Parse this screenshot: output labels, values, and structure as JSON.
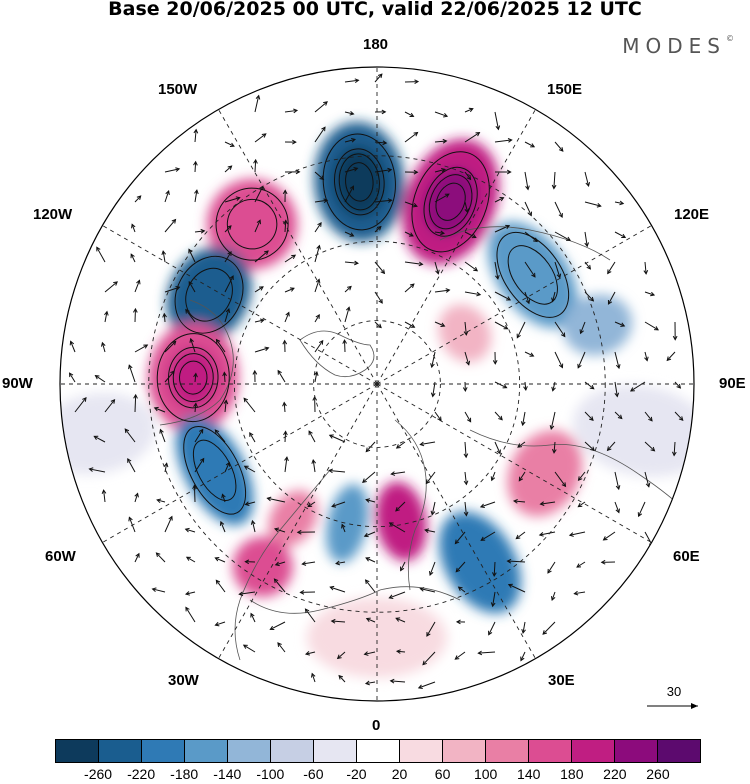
{
  "title": "Base 20/06/2025 00 UTC, valid 22/06/2025 12 UTC",
  "brand": "MODES",
  "brand_mark": "©",
  "longitude_labels": {
    "top": "180",
    "bottom": "0",
    "left": "90W",
    "right": "90E",
    "w150": "150W",
    "e150": "150E",
    "w120": "120W",
    "e120": "120E",
    "w60": "60W",
    "e60": "60E",
    "w30": "30W",
    "e30": "30E"
  },
  "reference_vector": {
    "label": "30",
    "icon": "arrow-right-icon"
  },
  "colorbar": {
    "colors": [
      "#0d3a5c",
      "#1a5d8f",
      "#2f7ab5",
      "#5a9ac8",
      "#92b6d8",
      "#c6cfe4",
      "#e6e6f2",
      "#ffffff",
      "#f8dbe1",
      "#f2b4c4",
      "#e97fa5",
      "#dc4d92",
      "#c01e82",
      "#8c0b7c",
      "#5c0a6e"
    ],
    "labels": [
      "-260",
      "-220",
      "-180",
      "-140",
      "-100",
      "-60",
      "-20",
      "20",
      "60",
      "100",
      "140",
      "180",
      "220",
      "260"
    ]
  }
}
